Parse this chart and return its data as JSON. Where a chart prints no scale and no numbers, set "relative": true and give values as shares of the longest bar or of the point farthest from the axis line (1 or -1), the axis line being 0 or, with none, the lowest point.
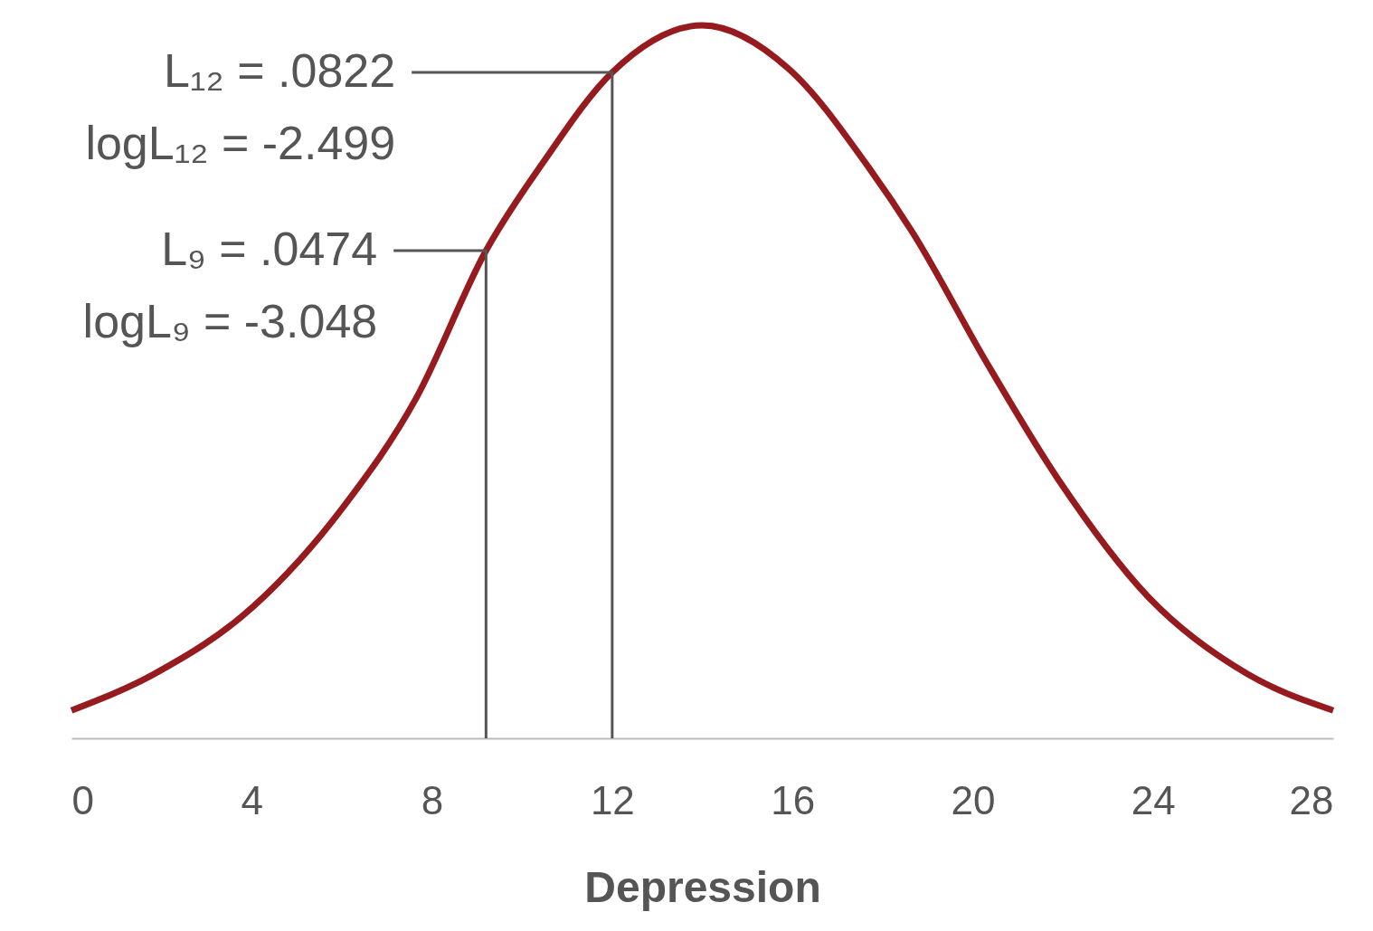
{
  "chart_data": {
    "type": "line",
    "relative": true,
    "xlabel": "Depression",
    "xlim": [
      0,
      28
    ],
    "xticks": [
      0,
      4,
      8,
      12,
      16,
      20,
      24,
      28
    ],
    "grid": false,
    "marker": "none",
    "line_style": "solid",
    "x": [
      0,
      1.83,
      4.04,
      6.04,
      7.65,
      9.2,
      10.46,
      12,
      14,
      15.9,
      17.7,
      18.7,
      20.3,
      21.9,
      23.9,
      26.1,
      28
    ],
    "series": [
      {
        "color": "#951b1e",
        "values": [
          0.039,
          0.09,
          0.185,
          0.325,
          0.477,
          0.684,
          0.807,
          0.934,
          1,
          0.94,
          0.8,
          0.706,
          0.528,
          0.363,
          0.198,
          0.09,
          0.039
        ]
      },
      {
        "color": "#555555",
        "x": [
          7.55,
          12,
          12
        ],
        "values": [
          0.934,
          0.934,
          0
        ]
      },
      {
        "color": "#555555",
        "x": [
          7.15,
          9.2,
          9.2
        ],
        "values": [
          0.684,
          0.684,
          0
        ]
      }
    ],
    "annotations": [
      "L₁₂ = .0822\nlogL₁₂ = -2.499",
      "L₉ = .0474\nlogL₉ = -3.048"
    ]
  }
}
